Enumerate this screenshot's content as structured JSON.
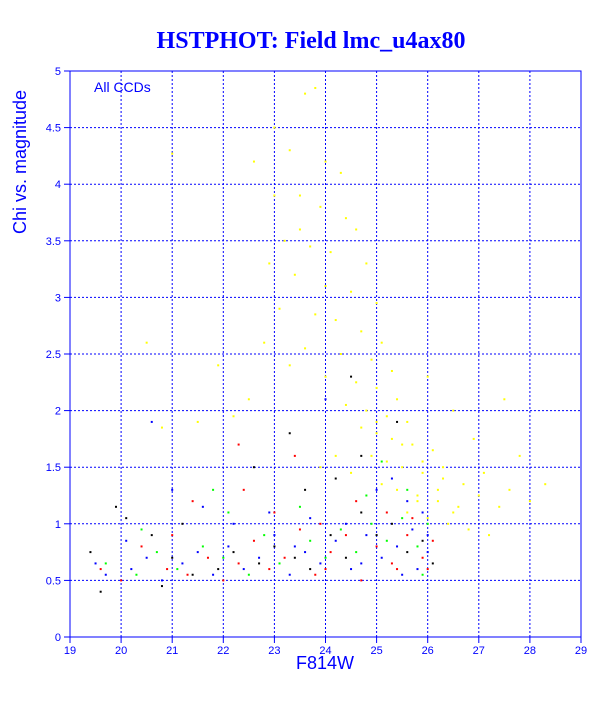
{
  "chart_data": {
    "type": "scatter",
    "title": "HSTPHOT: Field lmc_u4ax80",
    "xlabel": "F814W",
    "ylabel": "Chi vs. magnitude",
    "annotation": "All CCDs",
    "xlim": [
      19,
      29
    ],
    "ylim": [
      0,
      5
    ],
    "x_ticks": [
      "19",
      "20",
      "21",
      "22",
      "23",
      "24",
      "25",
      "26",
      "27",
      "28",
      "29"
    ],
    "y_ticks": [
      "0",
      "0.5",
      "1",
      "1.5",
      "2",
      "2.5",
      "3",
      "3.5",
      "4",
      "4.5",
      "5"
    ],
    "grid": true,
    "series": [
      {
        "color": "#ffff00",
        "points": [
          [
            23.0,
            4.5
          ],
          [
            23.3,
            4.3
          ],
          [
            23.6,
            4.8
          ],
          [
            23.8,
            4.85
          ],
          [
            24.0,
            4.2
          ],
          [
            24.3,
            4.1
          ],
          [
            23.5,
            3.9
          ],
          [
            23.9,
            3.8
          ],
          [
            24.4,
            3.7
          ],
          [
            24.6,
            3.6
          ],
          [
            23.2,
            3.5
          ],
          [
            23.7,
            3.45
          ],
          [
            24.1,
            3.4
          ],
          [
            24.8,
            3.3
          ],
          [
            23.4,
            3.2
          ],
          [
            24.0,
            3.1
          ],
          [
            24.5,
            3.05
          ],
          [
            25.0,
            2.95
          ],
          [
            23.1,
            2.9
          ],
          [
            23.8,
            2.85
          ],
          [
            24.2,
            2.8
          ],
          [
            24.7,
            2.7
          ],
          [
            25.1,
            2.6
          ],
          [
            23.6,
            2.55
          ],
          [
            24.3,
            2.5
          ],
          [
            24.9,
            2.45
          ],
          [
            25.3,
            2.35
          ],
          [
            24.0,
            2.3
          ],
          [
            24.6,
            2.25
          ],
          [
            25.0,
            2.2
          ],
          [
            25.4,
            2.1
          ],
          [
            24.4,
            2.05
          ],
          [
            24.8,
            2.0
          ],
          [
            25.2,
            1.95
          ],
          [
            25.6,
            1.9
          ],
          [
            24.7,
            1.85
          ],
          [
            25.0,
            1.8
          ],
          [
            25.3,
            1.75
          ],
          [
            25.7,
            1.7
          ],
          [
            26.1,
            1.65
          ],
          [
            24.9,
            1.6
          ],
          [
            25.2,
            1.55
          ],
          [
            25.5,
            1.5
          ],
          [
            25.9,
            1.45
          ],
          [
            26.3,
            1.4
          ],
          [
            25.1,
            1.35
          ],
          [
            25.4,
            1.3
          ],
          [
            25.8,
            1.25
          ],
          [
            26.2,
            1.2
          ],
          [
            26.6,
            1.15
          ],
          [
            25.6,
            1.1
          ],
          [
            26.0,
            1.05
          ],
          [
            26.4,
            1.0
          ],
          [
            26.8,
            0.95
          ],
          [
            27.2,
            0.9
          ],
          [
            25.8,
            1.2
          ],
          [
            26.2,
            1.3
          ],
          [
            26.5,
            1.1
          ],
          [
            27.0,
            1.25
          ],
          [
            27.4,
            1.15
          ],
          [
            25.0,
            1.9
          ],
          [
            25.5,
            1.7
          ],
          [
            25.9,
            1.55
          ],
          [
            26.3,
            1.5
          ],
          [
            26.7,
            1.35
          ],
          [
            27.1,
            1.45
          ],
          [
            27.6,
            1.3
          ],
          [
            28.0,
            1.2
          ],
          [
            28.3,
            1.35
          ],
          [
            27.8,
            1.6
          ],
          [
            22.6,
            4.2
          ],
          [
            23.0,
            3.9
          ],
          [
            22.9,
            3.3
          ],
          [
            23.5,
            3.6
          ],
          [
            22.8,
            2.6
          ],
          [
            23.3,
            2.4
          ],
          [
            22.5,
            2.1
          ],
          [
            22.2,
            1.95
          ],
          [
            21.5,
            1.9
          ],
          [
            20.8,
            1.85
          ],
          [
            20.5,
            2.6
          ],
          [
            21.0,
            4.27
          ],
          [
            21.9,
            2.4
          ],
          [
            26.5,
            2.0
          ],
          [
            27.5,
            2.1
          ],
          [
            26.9,
            1.75
          ],
          [
            24.2,
            1.6
          ],
          [
            23.9,
            1.5
          ],
          [
            24.5,
            1.45
          ],
          [
            26.0,
            2.3
          ]
        ]
      },
      {
        "color": "#0000ff",
        "points": [
          [
            19.7,
            0.55
          ],
          [
            20.2,
            0.6
          ],
          [
            20.5,
            0.7
          ],
          [
            20.8,
            0.5
          ],
          [
            21.2,
            0.65
          ],
          [
            21.5,
            0.75
          ],
          [
            21.8,
            0.55
          ],
          [
            22.1,
            0.8
          ],
          [
            22.4,
            0.6
          ],
          [
            22.7,
            0.7
          ],
          [
            23.0,
            0.9
          ],
          [
            23.3,
            0.55
          ],
          [
            23.6,
            0.75
          ],
          [
            23.9,
            0.65
          ],
          [
            24.2,
            0.85
          ],
          [
            24.5,
            0.6
          ],
          [
            24.8,
            0.9
          ],
          [
            25.1,
            0.7
          ],
          [
            25.4,
            0.8
          ],
          [
            25.7,
            0.95
          ],
          [
            26.0,
            0.75
          ],
          [
            25.9,
            1.1
          ],
          [
            25.6,
            1.2
          ],
          [
            25.3,
            1.4
          ],
          [
            25.0,
            1.3
          ],
          [
            24.4,
            1.0
          ],
          [
            23.7,
            1.05
          ],
          [
            22.9,
            1.1
          ],
          [
            22.2,
            1.0
          ],
          [
            21.6,
            1.15
          ],
          [
            20.6,
            1.9
          ],
          [
            21.0,
            1.3
          ],
          [
            20.1,
            0.85
          ],
          [
            19.5,
            0.65
          ],
          [
            24.0,
            2.1
          ],
          [
            25.8,
            0.6
          ],
          [
            26.0,
            0.9
          ],
          [
            25.5,
            0.55
          ],
          [
            24.7,
            0.65
          ],
          [
            23.4,
            0.8
          ]
        ]
      },
      {
        "color": "#ff0000",
        "points": [
          [
            19.6,
            0.6
          ],
          [
            20.0,
            0.5
          ],
          [
            20.4,
            0.8
          ],
          [
            20.9,
            0.6
          ],
          [
            21.3,
            0.55
          ],
          [
            21.7,
            0.7
          ],
          [
            22.0,
            0.5
          ],
          [
            22.3,
            0.65
          ],
          [
            22.6,
            0.85
          ],
          [
            22.9,
            0.6
          ],
          [
            23.2,
            0.7
          ],
          [
            23.5,
            0.95
          ],
          [
            23.8,
            0.55
          ],
          [
            24.1,
            0.75
          ],
          [
            24.4,
            0.9
          ],
          [
            24.7,
            0.5
          ],
          [
            25.0,
            0.8
          ],
          [
            25.3,
            0.65
          ],
          [
            25.6,
            0.9
          ],
          [
            25.9,
            0.7
          ],
          [
            26.1,
            0.85
          ],
          [
            25.7,
            1.05
          ],
          [
            25.2,
            1.1
          ],
          [
            24.6,
            1.2
          ],
          [
            23.9,
            1.0
          ],
          [
            23.0,
            1.1
          ],
          [
            22.4,
            1.3
          ],
          [
            21.4,
            1.2
          ],
          [
            22.3,
            1.7
          ],
          [
            23.4,
            1.6
          ],
          [
            25.4,
            0.6
          ],
          [
            26.0,
            0.6
          ],
          [
            24.0,
            0.6
          ],
          [
            21.0,
            0.9
          ]
        ]
      },
      {
        "color": "#00ff00",
        "points": [
          [
            19.7,
            0.65
          ],
          [
            20.3,
            0.55
          ],
          [
            20.7,
            0.75
          ],
          [
            21.1,
            0.6
          ],
          [
            21.6,
            0.8
          ],
          [
            22.0,
            0.7
          ],
          [
            22.5,
            0.55
          ],
          [
            22.8,
            0.9
          ],
          [
            23.1,
            0.65
          ],
          [
            23.7,
            0.85
          ],
          [
            24.0,
            0.7
          ],
          [
            24.3,
            0.95
          ],
          [
            24.6,
            0.75
          ],
          [
            24.9,
            1.0
          ],
          [
            25.2,
            0.85
          ],
          [
            25.5,
            1.05
          ],
          [
            25.8,
            0.8
          ],
          [
            26.0,
            1.0
          ],
          [
            25.6,
            1.3
          ],
          [
            25.1,
            1.55
          ],
          [
            24.8,
            1.25
          ],
          [
            23.5,
            1.15
          ],
          [
            22.1,
            1.1
          ],
          [
            20.4,
            0.95
          ],
          [
            21.8,
            1.3
          ],
          [
            25.9,
            0.55
          ]
        ]
      },
      {
        "color": "#000000",
        "points": [
          [
            19.4,
            0.75
          ],
          [
            19.9,
            1.15
          ],
          [
            20.1,
            1.05
          ],
          [
            20.6,
            0.9
          ],
          [
            21.0,
            0.7
          ],
          [
            21.4,
            0.55
          ],
          [
            21.9,
            0.6
          ],
          [
            22.2,
            0.75
          ],
          [
            22.7,
            0.65
          ],
          [
            23.0,
            0.8
          ],
          [
            23.4,
            0.7
          ],
          [
            23.7,
            0.6
          ],
          [
            24.1,
            0.9
          ],
          [
            24.4,
            0.7
          ],
          [
            24.7,
            1.1
          ],
          [
            25.0,
            0.9
          ],
          [
            25.3,
            1.0
          ],
          [
            25.6,
            0.75
          ],
          [
            25.9,
            0.85
          ],
          [
            26.1,
            0.65
          ],
          [
            24.2,
            1.4
          ],
          [
            24.7,
            1.6
          ],
          [
            23.6,
            1.3
          ],
          [
            22.6,
            1.5
          ],
          [
            21.2,
            1.0
          ],
          [
            20.8,
            0.45
          ],
          [
            19.6,
            0.4
          ],
          [
            24.5,
            2.3
          ],
          [
            23.3,
            1.8
          ],
          [
            25.4,
            1.9
          ]
        ]
      }
    ]
  }
}
